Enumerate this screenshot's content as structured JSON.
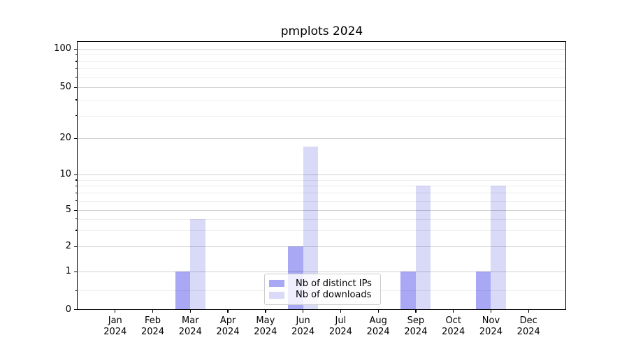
{
  "title": "pmplots 2024",
  "chart_data": {
    "type": "bar",
    "title": "pmplots 2024",
    "categories": [
      {
        "month": "Jan",
        "year": "2024"
      },
      {
        "month": "Feb",
        "year": "2024"
      },
      {
        "month": "Mar",
        "year": "2024"
      },
      {
        "month": "Apr",
        "year": "2024"
      },
      {
        "month": "May",
        "year": "2024"
      },
      {
        "month": "Jun",
        "year": "2024"
      },
      {
        "month": "Jul",
        "year": "2024"
      },
      {
        "month": "Aug",
        "year": "2024"
      },
      {
        "month": "Sep",
        "year": "2024"
      },
      {
        "month": "Oct",
        "year": "2024"
      },
      {
        "month": "Nov",
        "year": "2024"
      },
      {
        "month": "Dec",
        "year": "2024"
      }
    ],
    "series": [
      {
        "name": "Nb of distinct IPs",
        "color": "#a8a8f4",
        "values": [
          0,
          0,
          1,
          0,
          0,
          2,
          0,
          0,
          1,
          0,
          1,
          0
        ]
      },
      {
        "name": "Nb of downloads",
        "color": "#d9d9f8",
        "values": [
          0,
          0,
          4,
          0,
          0,
          17,
          0,
          0,
          8,
          0,
          8,
          0
        ]
      }
    ],
    "xlabel": "",
    "ylabel": "",
    "yscale": "asinh-log",
    "yticks": [
      0,
      1,
      2,
      5,
      10,
      20,
      50,
      100
    ],
    "minor_yticks": [
      0.5,
      3,
      4,
      6,
      7,
      8,
      9,
      30,
      40,
      60,
      70,
      80,
      90
    ],
    "ylim": [
      0,
      113
    ],
    "grid": true,
    "legend_position": "lower center"
  }
}
